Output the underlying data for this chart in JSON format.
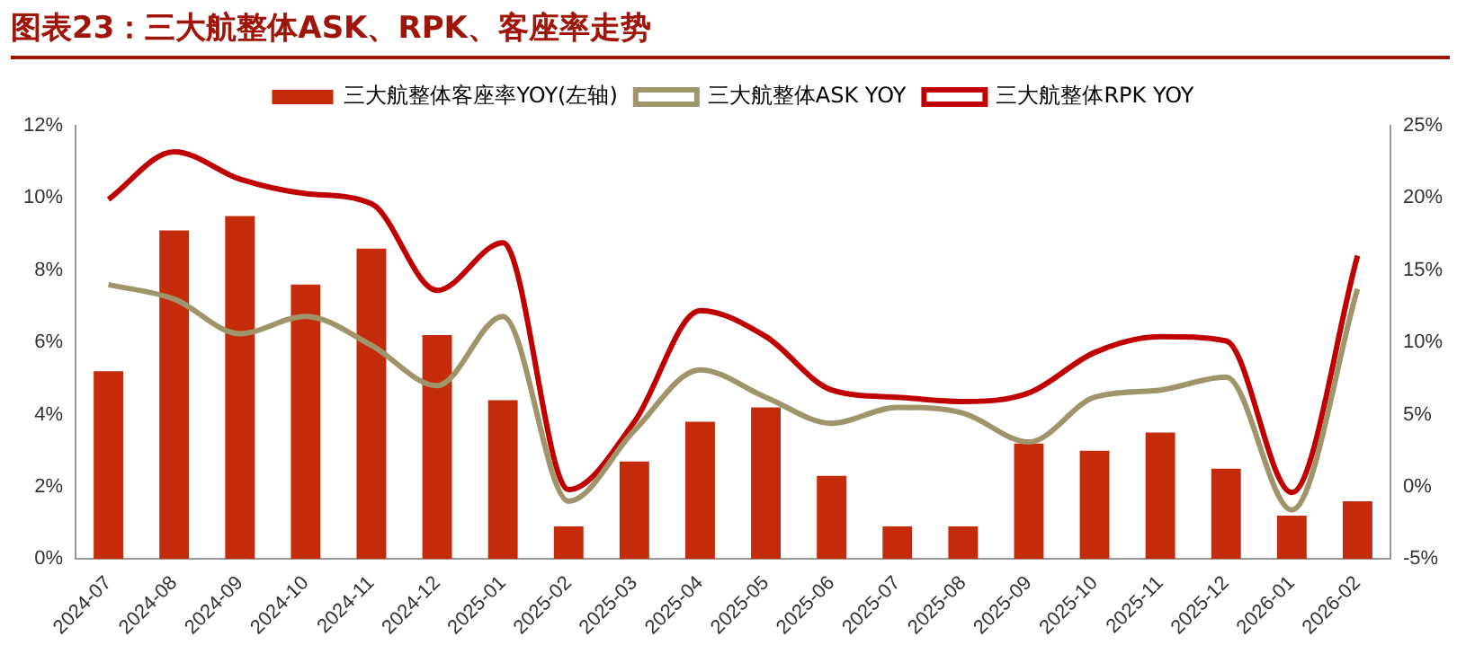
{
  "chart_data": {
    "type": "bar",
    "title": "图表23：三大航整体ASK、RPK、客座率走势",
    "categories": [
      "2024-07",
      "2024-08",
      "2024-09",
      "2024-10",
      "2024-11",
      "2024-12",
      "2025-01",
      "2025-02",
      "2025-03",
      "2025-04",
      "2025-05",
      "2025-06",
      "2025-07",
      "2025-08",
      "2025-09",
      "2025-10",
      "2025-11",
      "2025-12",
      "2026-01",
      "2026-02"
    ],
    "series": [
      {
        "name": "三大航整体客座率YOY(左轴)",
        "color": "#c32b0a",
        "values": [
          5.2,
          9.1,
          9.5,
          7.6,
          8.6,
          6.2,
          4.4,
          0.9,
          2.7,
          3.8,
          4.2,
          2.3,
          0.9,
          0.9,
          3.2,
          3.0,
          3.5,
          2.5,
          1.2,
          1.6
        ]
      },
      {
        "name": "三大航整体ASK YOY",
        "type": "line",
        "axis": "y2",
        "color": "#a0956a",
        "values": [
          14.0,
          13.0,
          10.6,
          11.8,
          9.8,
          7.0,
          11.8,
          -1.0,
          3.9,
          8.1,
          6.2,
          4.4,
          5.5,
          5.1,
          3.1,
          6.2,
          6.7,
          7.6,
          -1.6,
          13.7
        ]
      },
      {
        "name": "三大航整体RPK YOY",
        "type": "line",
        "axis": "y2",
        "color": "#c00000",
        "values": [
          19.9,
          23.2,
          21.3,
          20.3,
          19.6,
          13.6,
          16.9,
          -0.2,
          4.5,
          12.2,
          10.4,
          6.7,
          6.2,
          5.9,
          6.5,
          9.3,
          10.4,
          10.1,
          -0.4,
          16.0
        ]
      }
    ],
    "ylim": [
      0,
      12
    ],
    "yticks": [
      {
        "value": 0,
        "label": "0%"
      },
      {
        "value": 2,
        "label": "2%"
      },
      {
        "value": 4,
        "label": "4%"
      },
      {
        "value": 6,
        "label": "6%"
      },
      {
        "value": 8,
        "label": "8%"
      },
      {
        "value": 10,
        "label": "10%"
      },
      {
        "value": 12,
        "label": "12%"
      }
    ],
    "y2lim": [
      -5,
      25
    ],
    "y2ticks": [
      {
        "value": -5,
        "label": "-5%"
      },
      {
        "value": 0,
        "label": "0%"
      },
      {
        "value": 5,
        "label": "5%"
      },
      {
        "value": 10,
        "label": "10%"
      },
      {
        "value": 15,
        "label": "15%"
      },
      {
        "value": 20,
        "label": "20%"
      },
      {
        "value": 25,
        "label": "25%"
      }
    ],
    "grid": false,
    "legend": "top",
    "marker": "none",
    "line_style": "solid"
  }
}
